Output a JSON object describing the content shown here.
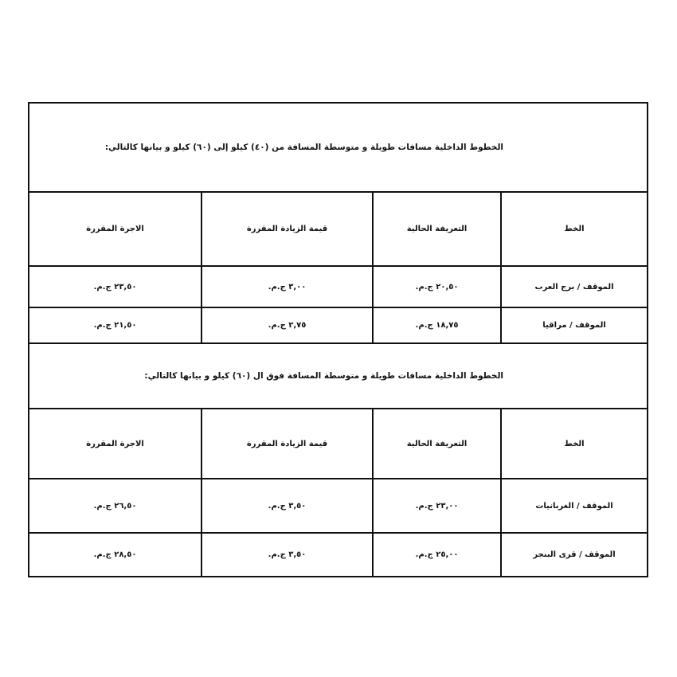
{
  "sections": [
    {
      "title": "الخطوط الداخلية مسافات طويلة و متوسطة المسافة من (٤٠) كيلو إلى (٦٠) كيلو و بيانها كالتالي:",
      "headers": [
        "الخط",
        "التعريفة الحالية",
        "قيمة الزيادة المقررة",
        "الاجرة المقررة"
      ],
      "rows": [
        [
          "الموقف / برج العرب",
          "٢٠,٥٠ ج.م.",
          "٣,٠٠ ج.م.",
          "٢٣,٥٠ ج.م."
        ],
        [
          "الموقف / مراقيا",
          "١٨,٧٥ ج.م.",
          "٢,٧٥ ج.م.",
          "٢١,٥٠ ج.م."
        ]
      ]
    },
    {
      "title": "الخطوط الداخلية مسافات طويلة و متوسطة المسافة فوق ال (٦٠) كيلو و بيانها كالتالي:",
      "headers": [
        "الخط",
        "التعريفة الحالية",
        "قيمة الزيادة المقررة",
        "الاجرة المقررة"
      ],
      "rows": [
        [
          "الموقف / الغربانيات",
          "٢٣,٠٠ ج.م.",
          "٣,٥٠ ج.م.",
          "٢٦,٥٠ ج.م."
        ],
        [
          "الموقف / قرى البنجر",
          "٢٥,٠٠ ج.م.",
          "٣,٥٠ ج.م.",
          "٢٨,٥٠ ج.م."
        ]
      ]
    }
  ]
}
